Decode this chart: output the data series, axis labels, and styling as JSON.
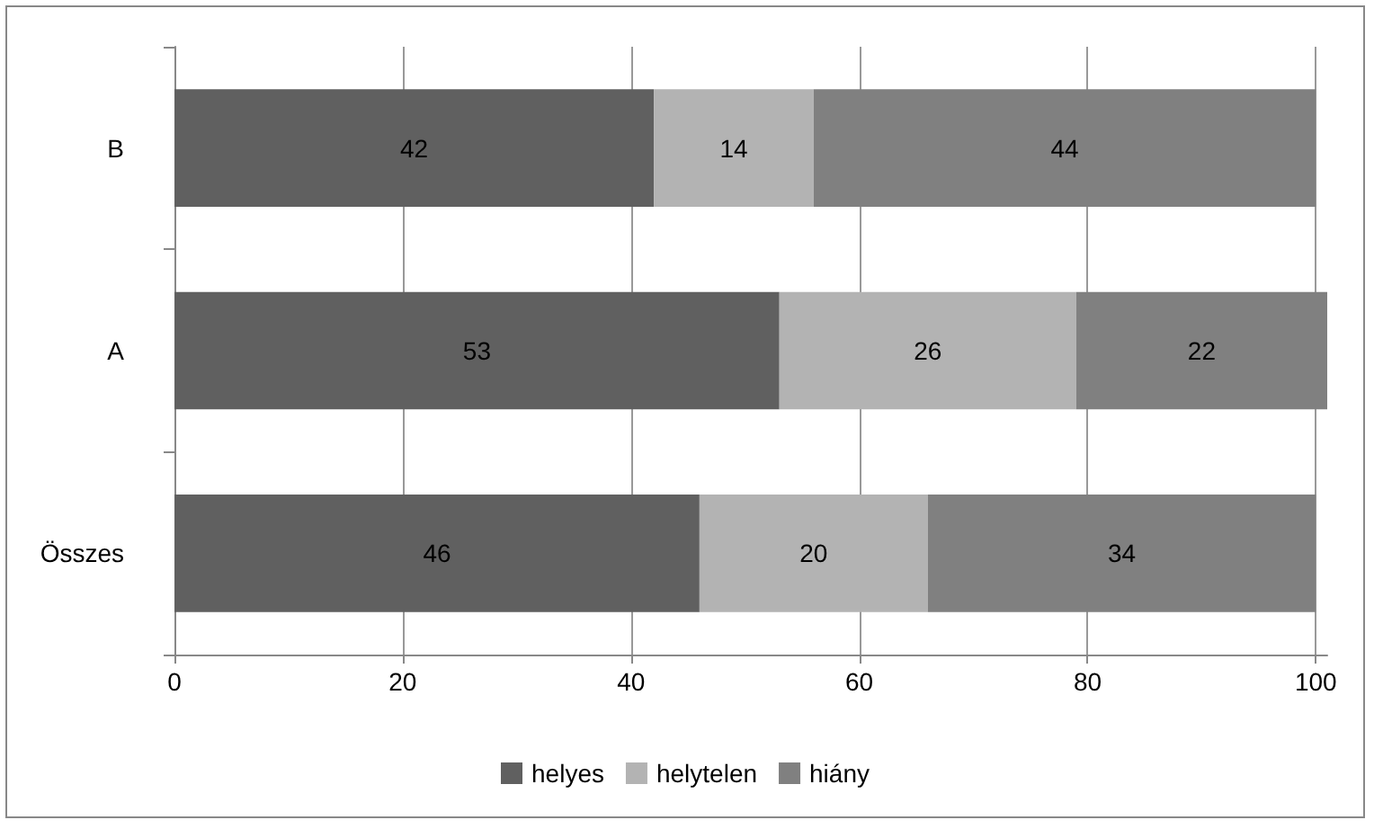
{
  "chart_data": {
    "type": "bar",
    "orientation": "horizontal",
    "stacked": true,
    "categories": [
      "B",
      "A",
      "Összes"
    ],
    "series": [
      {
        "name": "helyes",
        "color": "#606060",
        "values": [
          42,
          53,
          46
        ]
      },
      {
        "name": "helytelen",
        "color": "#b3b3b3",
        "values": [
          14,
          26,
          20
        ]
      },
      {
        "name": "hiány",
        "color": "#808080",
        "values": [
          44,
          22,
          34
        ]
      }
    ],
    "xlim": [
      0,
      101
    ],
    "xticks": [
      0,
      20,
      40,
      60,
      80,
      100
    ],
    "grid": "x",
    "legend": "bottom",
    "data_labels": true
  }
}
